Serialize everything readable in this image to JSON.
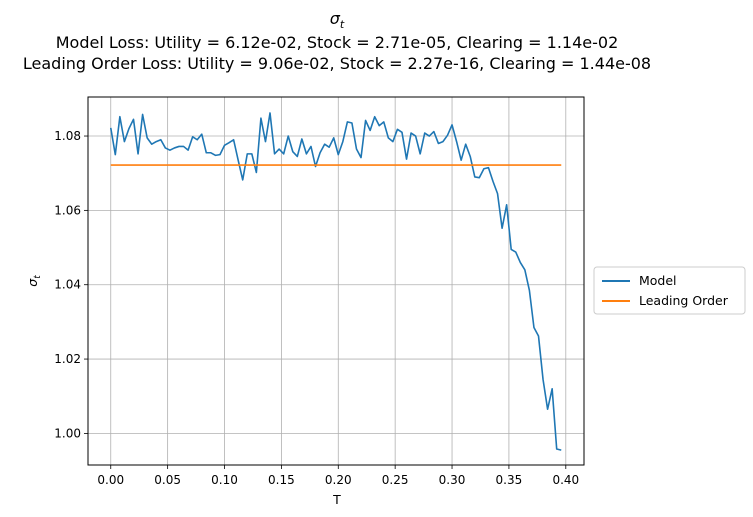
{
  "chart_data": {
    "type": "line",
    "title": "σ_t",
    "title_lines": [
      "Model Loss: Utility = 6.12e-02, Stock = 2.71e-05, Clearing = 1.14e-02",
      "Leading Order Loss: Utility = 9.06e-02, Stock = 2.27e-16, Clearing = 1.44e-08"
    ],
    "xlabel": "T",
    "ylabel": "σ_t",
    "xlim": [
      -0.02,
      0.416
    ],
    "ylim": [
      0.9915,
      1.0905
    ],
    "xticks": [
      0.0,
      0.05,
      0.1,
      0.15,
      0.2,
      0.25,
      0.3,
      0.35,
      0.4
    ],
    "xtick_labels": [
      "0.00",
      "0.05",
      "0.10",
      "0.15",
      "0.20",
      "0.25",
      "0.30",
      "0.35",
      "0.40"
    ],
    "yticks": [
      1.0,
      1.02,
      1.04,
      1.06,
      1.08
    ],
    "ytick_labels": [
      "1.00",
      "1.02",
      "1.04",
      "1.06",
      "1.08"
    ],
    "grid": true,
    "legend_position": "outside-right",
    "series": [
      {
        "name": "Model",
        "color": "#1f77b4",
        "x": [
          0.0,
          0.004,
          0.008,
          0.012,
          0.016,
          0.02,
          0.024,
          0.028,
          0.032,
          0.036,
          0.04,
          0.044,
          0.048,
          0.052,
          0.056,
          0.06,
          0.064,
          0.068,
          0.072,
          0.076,
          0.08,
          0.084,
          0.088,
          0.092,
          0.096,
          0.1,
          0.104,
          0.108,
          0.112,
          0.116,
          0.12,
          0.124,
          0.128,
          0.132,
          0.136,
          0.14,
          0.144,
          0.148,
          0.152,
          0.156,
          0.16,
          0.164,
          0.168,
          0.172,
          0.176,
          0.18,
          0.184,
          0.188,
          0.192,
          0.196,
          0.2,
          0.204,
          0.208,
          0.212,
          0.216,
          0.22,
          0.224,
          0.228,
          0.232,
          0.236,
          0.24,
          0.244,
          0.248,
          0.252,
          0.256,
          0.26,
          0.264,
          0.268,
          0.272,
          0.276,
          0.28,
          0.284,
          0.288,
          0.292,
          0.296,
          0.3,
          0.304,
          0.308,
          0.312,
          0.316,
          0.32,
          0.324,
          0.328,
          0.332,
          0.336,
          0.34,
          0.344,
          0.348,
          0.352,
          0.356,
          0.36,
          0.364,
          0.368,
          0.372,
          0.376,
          0.38,
          0.384,
          0.388,
          0.392,
          0.396
        ],
        "y": [
          1.0822,
          1.075,
          1.0852,
          1.0785,
          1.082,
          1.0845,
          1.0752,
          1.0858,
          1.0795,
          1.0778,
          1.0785,
          1.079,
          1.0768,
          1.0762,
          1.0768,
          1.0772,
          1.0772,
          1.0762,
          1.0798,
          1.079,
          1.0805,
          1.0755,
          1.0755,
          1.0748,
          1.075,
          1.0775,
          1.0782,
          1.079,
          1.0735,
          1.0682,
          1.0752,
          1.0752,
          1.0702,
          1.0848,
          1.0785,
          1.0862,
          1.0752,
          1.0765,
          1.0752,
          1.08,
          1.0758,
          1.0745,
          1.0792,
          1.0752,
          1.0772,
          1.0718,
          1.0755,
          1.0778,
          1.077,
          1.0795,
          1.075,
          1.0785,
          1.0838,
          1.0835,
          1.0765,
          1.0742,
          1.0842,
          1.0815,
          1.0852,
          1.0828,
          1.0838,
          1.0795,
          1.0785,
          1.0818,
          1.081,
          1.0738,
          1.0808,
          1.08,
          1.0752,
          1.0808,
          1.08,
          1.0812,
          1.078,
          1.0785,
          1.0802,
          1.083,
          1.0785,
          1.0735,
          1.0778,
          1.0745,
          1.069,
          1.0688,
          1.0712,
          1.0715,
          1.0678,
          1.0645,
          1.0552,
          1.0615,
          1.0495,
          1.0488,
          1.046,
          1.044,
          1.0385,
          1.0285,
          1.0262,
          1.0145,
          1.0065,
          1.012,
          0.9958,
          0.9955
        ]
      },
      {
        "name": "Leading Order",
        "color": "#ff7f0e",
        "x": [
          0.0,
          0.396
        ],
        "y": [
          1.0722,
          1.0722
        ]
      }
    ]
  }
}
